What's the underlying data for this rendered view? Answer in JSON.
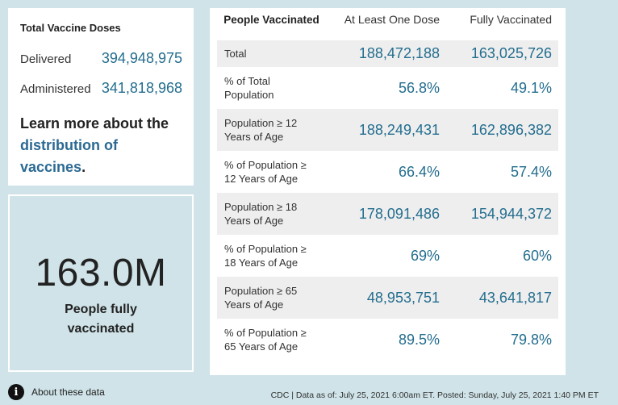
{
  "doses": {
    "title": "Total Vaccine Doses",
    "delivered_label": "Delivered",
    "delivered_value": "394,948,975",
    "administered_label": "Administered",
    "administered_value": "341,818,968",
    "learn_prefix": "Learn more about the ",
    "learn_link": "distribution of vaccines",
    "learn_suffix": "."
  },
  "stat": {
    "value": "163.0M",
    "label_line1": "People fully",
    "label_line2": "vaccinated"
  },
  "table": {
    "headers": [
      "People Vaccinated",
      "At Least One Dose",
      "Fully Vaccinated"
    ],
    "rows": [
      {
        "label": "Total",
        "one_dose": "188,472,188",
        "fully": "163,025,726"
      },
      {
        "label_line1": "% of Total",
        "label_line2": "Population",
        "one_dose": "56.8%",
        "fully": "49.1%"
      },
      {
        "label_line1": "Population ≥ 12",
        "label_line2": "Years of Age",
        "one_dose": "188,249,431",
        "fully": "162,896,382"
      },
      {
        "label_line1": "% of Population ≥",
        "label_line2": "12 Years of Age",
        "one_dose": "66.4%",
        "fully": "57.4%"
      },
      {
        "label_line1": "Population ≥ 18",
        "label_line2": "Years of Age",
        "one_dose": "178,091,486",
        "fully": "154,944,372"
      },
      {
        "label_line1": "% of Population ≥",
        "label_line2": "18 Years of Age",
        "one_dose": "69%",
        "fully": "60%"
      },
      {
        "label_line1": "Population ≥ 65",
        "label_line2": "Years of Age",
        "one_dose": "48,953,751",
        "fully": "43,641,817"
      },
      {
        "label_line1": "% of Population ≥",
        "label_line2": "65 Years of Age",
        "one_dose": "89.5%",
        "fully": "79.8%"
      }
    ]
  },
  "footer": {
    "about_label": "About these data",
    "info_icon": "info-icon",
    "source": "CDC | Data as of: July 25, 2021 6:00am ET. Posted: Sunday, July 25, 2021 1:40 PM ET"
  },
  "colors": {
    "background": "#cfe3e8",
    "accent_blue": "#246e8f",
    "row_shade": "#eeeeee"
  }
}
